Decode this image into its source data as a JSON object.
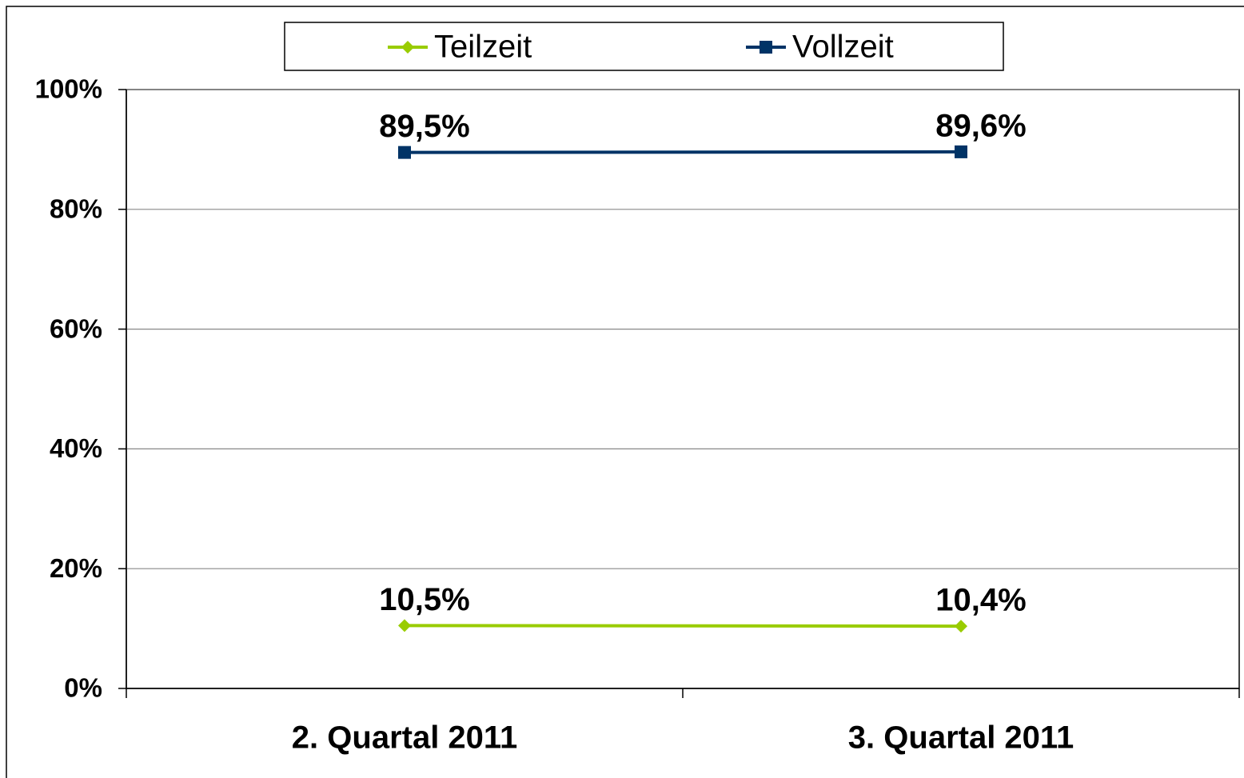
{
  "chart_data": {
    "type": "line",
    "categories": [
      "2. Quartal 2011",
      "3. Quartal 2011"
    ],
    "series": [
      {
        "name": "Teilzeit",
        "color": "#99cc00",
        "marker": "diamond",
        "values": [
          10.5,
          10.4
        ],
        "value_labels": [
          "10,5%",
          "10,4%"
        ]
      },
      {
        "name": "Vollzeit",
        "color": "#003366",
        "marker": "square",
        "values": [
          89.5,
          89.6
        ],
        "value_labels": [
          "89,5%",
          "89,6%"
        ]
      }
    ],
    "ylim": [
      0,
      100
    ],
    "yticks": [
      {
        "value": 0,
        "label": "0%"
      },
      {
        "value": 20,
        "label": "20%"
      },
      {
        "value": 40,
        "label": "40%"
      },
      {
        "value": 60,
        "label": "60%"
      },
      {
        "value": 80,
        "label": "80%"
      },
      {
        "value": 100,
        "label": "100%"
      }
    ],
    "grid": true,
    "legend": "top"
  }
}
